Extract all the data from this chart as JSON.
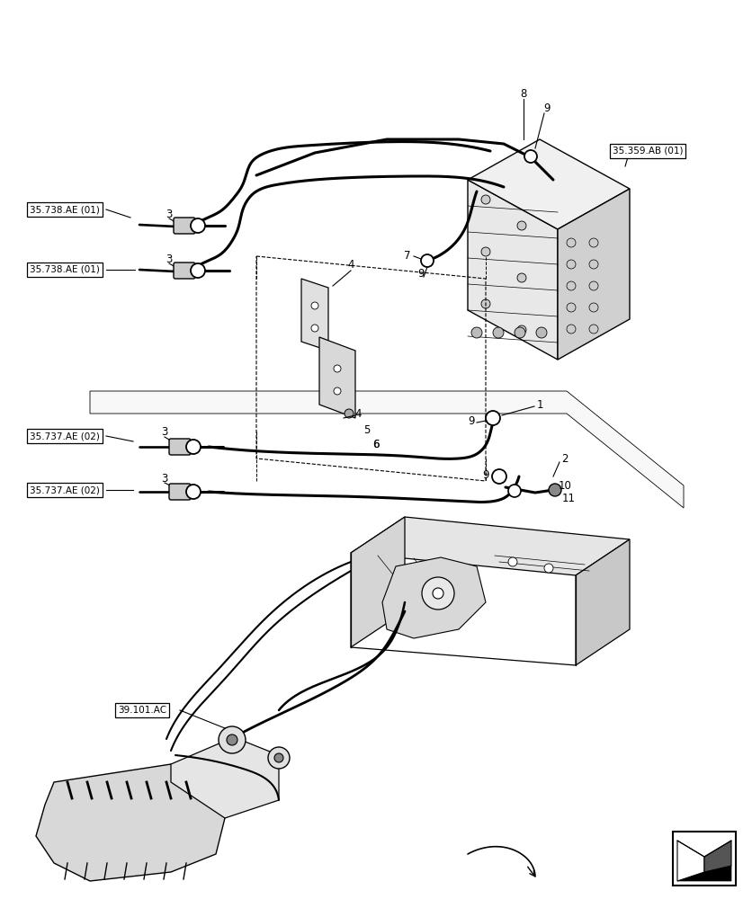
{
  "bg_color": "#ffffff",
  "line_color": "#000000",
  "fig_width": 8.36,
  "fig_height": 10.0,
  "labels": {
    "ref1": "35.738.AE (01)",
    "ref2": "35.738.AE (01)",
    "ref3": "35.737.AE (02)",
    "ref4": "35.737.AE (02)",
    "ref5": "35.359.AB (01)",
    "ref6": "39.101.AC"
  }
}
